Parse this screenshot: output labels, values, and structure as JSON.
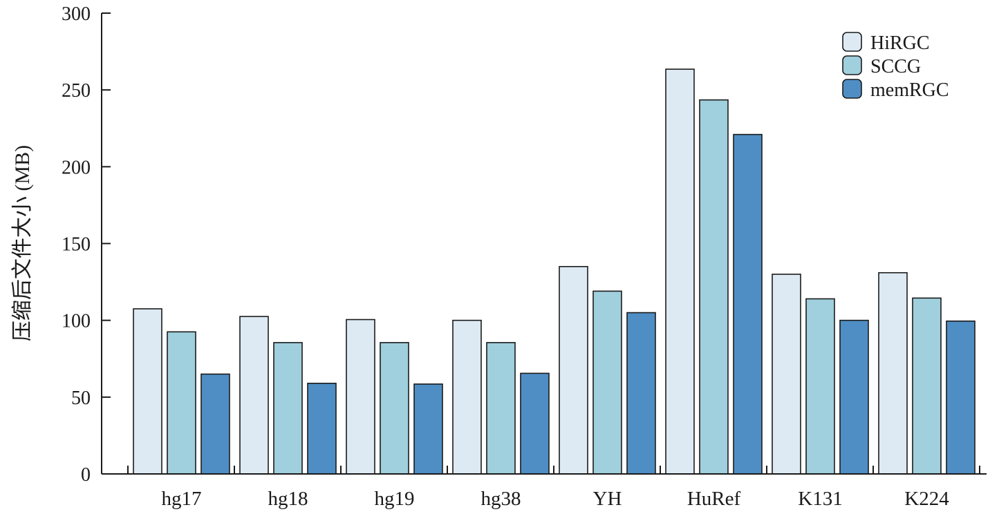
{
  "chart_data": {
    "type": "bar",
    "title": "",
    "xlabel": "",
    "ylabel": "压缩后文件大小 (MB)",
    "ylim": [
      0,
      300
    ],
    "yticks": [
      0,
      50,
      100,
      150,
      200,
      250,
      300
    ],
    "grid": false,
    "legend_position": "top-right",
    "categories": [
      "hg17",
      "hg18",
      "hg19",
      "hg38",
      "YH",
      "HuRef",
      "K131",
      "K224"
    ],
    "series": [
      {
        "name": "HiRGC",
        "color": "#ddeaf4",
        "values": [
          107.5,
          102.5,
          100.5,
          100,
          135,
          263.5,
          130,
          131
        ]
      },
      {
        "name": "SCCG",
        "color": "#a0cfdd",
        "values": [
          92.5,
          85.5,
          85.5,
          85.5,
          119,
          243.5,
          114,
          114.5
        ]
      },
      {
        "name": "memRGC",
        "color": "#4f8ec4",
        "values": [
          65,
          59,
          58.5,
          65.5,
          105,
          221,
          100,
          99.5
        ]
      }
    ]
  }
}
